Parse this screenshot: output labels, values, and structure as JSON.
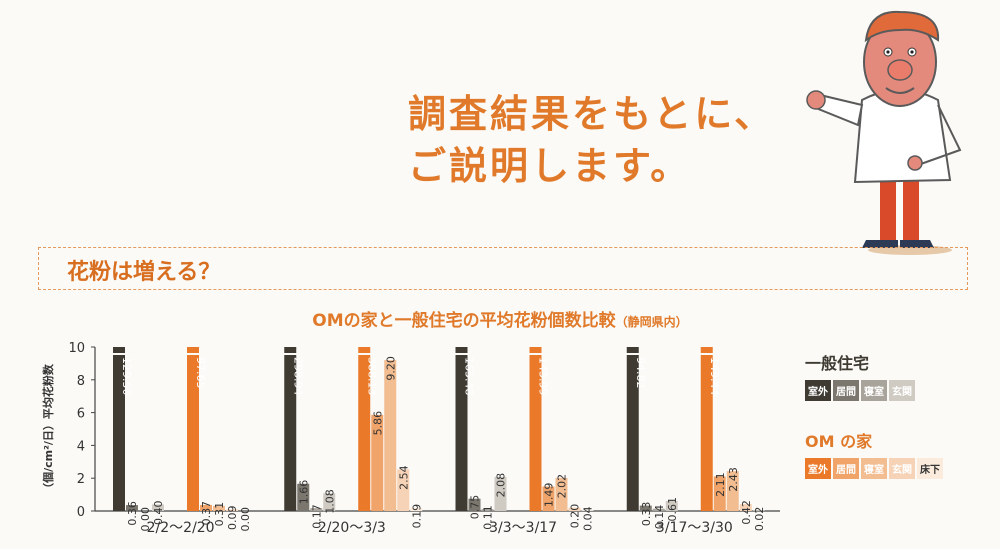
{
  "headline": {
    "line1": "調査結果をもとに、",
    "line2": "ご説明します。"
  },
  "section": {
    "title": "花粉は増える？"
  },
  "chart_title": {
    "main": "OMの家と一般住宅の平均花粉個数比較",
    "sub": "（静岡県内）"
  },
  "legend": {
    "general": {
      "name": "一般住宅",
      "items": [
        "室外",
        "居間",
        "寝室",
        "玄関"
      ]
    },
    "om": {
      "name": "OM の家",
      "items": [
        "室外",
        "居間",
        "寝室",
        "玄関",
        "床下"
      ]
    }
  },
  "colors": {
    "general": [
      "#3f3b33",
      "#7b776e",
      "#a9a49b",
      "#cfcbc3"
    ],
    "om": [
      "#ea7a2a",
      "#f0a46a",
      "#f3bd92",
      "#f6d3b6",
      "#faebdc"
    ],
    "text": "#e07a2a"
  },
  "chart_data": {
    "type": "bar",
    "ylabel": "（個/cm²/日）平均花粉数",
    "ylim": [
      0,
      10
    ],
    "yticks": [
      0,
      2,
      4,
      6,
      8,
      10
    ],
    "categories": [
      "2/2〜2/20",
      "2/20〜3/3",
      "3/3〜3/17",
      "3/17〜3/30"
    ],
    "groups": [
      {
        "general": [
          129.5,
          0.36,
          0.0,
          0.4
        ],
        "om": [
          97.65,
          0.37,
          0.31,
          0.09,
          0.0
        ]
      },
      {
        "general": [
          298.94,
          1.66,
          0.17,
          1.08
        ],
        "om": [
          388.13,
          5.86,
          9.2,
          2.54,
          0.19
        ]
      },
      {
        "general": [
          165.48,
          0.75,
          0.11,
          2.08
        ],
        "om": [
          143.99,
          1.49,
          2.02,
          0.2,
          0.04
        ]
      },
      {
        "general": [
          94.82,
          0.33,
          0.14,
          0.61
        ],
        "om": [
          149.44,
          2.11,
          2.43,
          0.42,
          0.02
        ]
      }
    ]
  }
}
